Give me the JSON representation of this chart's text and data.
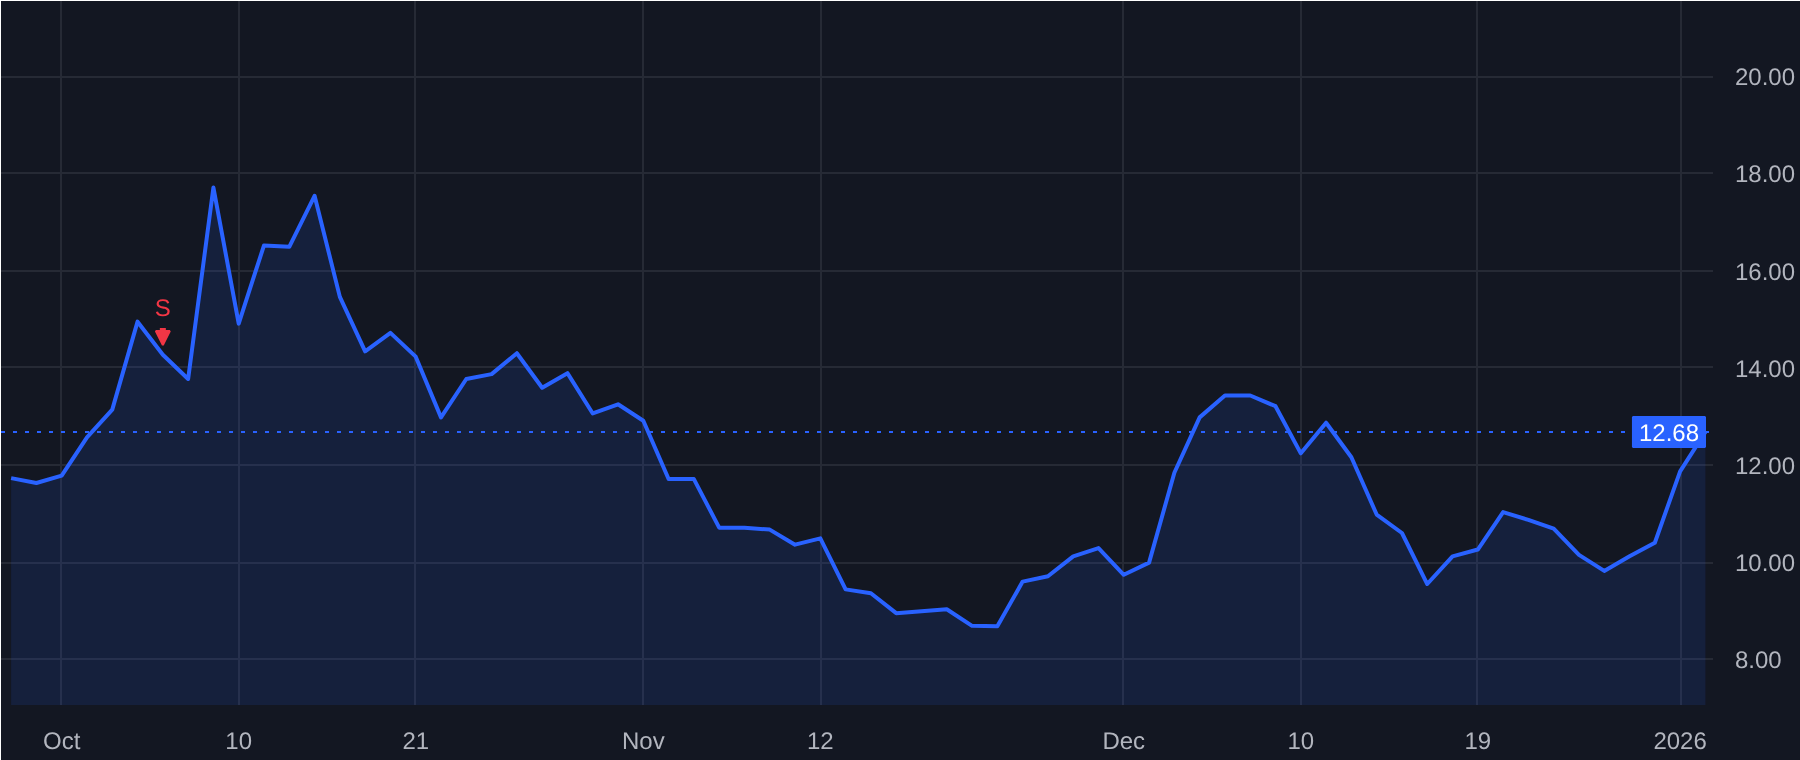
{
  "chart_data": {
    "type": "area",
    "categories": [
      null,
      null,
      "Oct",
      null,
      null,
      null,
      null,
      null,
      null,
      "10",
      null,
      null,
      null,
      null,
      null,
      null,
      "21",
      null,
      null,
      null,
      null,
      null,
      null,
      null,
      null,
      "Nov",
      null,
      null,
      null,
      null,
      null,
      null,
      "12",
      null,
      null,
      null,
      null,
      null,
      null,
      null,
      null,
      null,
      null,
      null,
      "Dec",
      null,
      null,
      null,
      null,
      null,
      null,
      "10",
      null,
      null,
      null,
      null,
      null,
      null,
      "19",
      null,
      null,
      null,
      null,
      null,
      null,
      null,
      "2026",
      null
    ],
    "series": [
      {
        "color": "#2962ff",
        "values": [
          11.73,
          11.63,
          11.78,
          12.57,
          13.14,
          14.95,
          14.27,
          13.77,
          17.71,
          14.91,
          16.52,
          16.49,
          17.54,
          15.46,
          14.34,
          14.72,
          14.23,
          12.98,
          13.77,
          13.87,
          14.3,
          13.59,
          13.89,
          13.06,
          13.25,
          12.91,
          11.71,
          11.71,
          10.71,
          10.71,
          10.67,
          10.36,
          10.49,
          9.44,
          9.36,
          8.95,
          8.99,
          9.03,
          8.69,
          8.68,
          9.6,
          9.71,
          10.12,
          10.29,
          9.74,
          9.99,
          11.84,
          12.98,
          13.43,
          13.43,
          13.21,
          12.24,
          12.87,
          12.16,
          10.98,
          10.6,
          9.55,
          10.12,
          10.26,
          11.03,
          10.87,
          10.69,
          10.15,
          9.82,
          10.12,
          10.4,
          11.87,
          12.68
        ]
      }
    ],
    "ylim": [
      7.06,
      21.55
    ],
    "yticks": [
      {
        "value": 8,
        "label": "8.00"
      },
      {
        "value": 10,
        "label": "10.00"
      },
      {
        "value": 12,
        "label": "12.00"
      },
      {
        "value": 14,
        "label": "14.00"
      },
      {
        "value": 16,
        "label": "16.00"
      },
      {
        "value": 18,
        "label": "18.00"
      },
      {
        "value": 20,
        "label": "20.00"
      }
    ],
    "ref_lines": [
      {
        "axis": "y",
        "value": 12.68,
        "label": "12.68",
        "color": "#2962ff",
        "line_style": "dotted"
      }
    ],
    "annotations": [
      {
        "text": "S",
        "y": 14.27
      }
    ],
    "grid": true,
    "marker": "none",
    "line_style": "solid"
  }
}
